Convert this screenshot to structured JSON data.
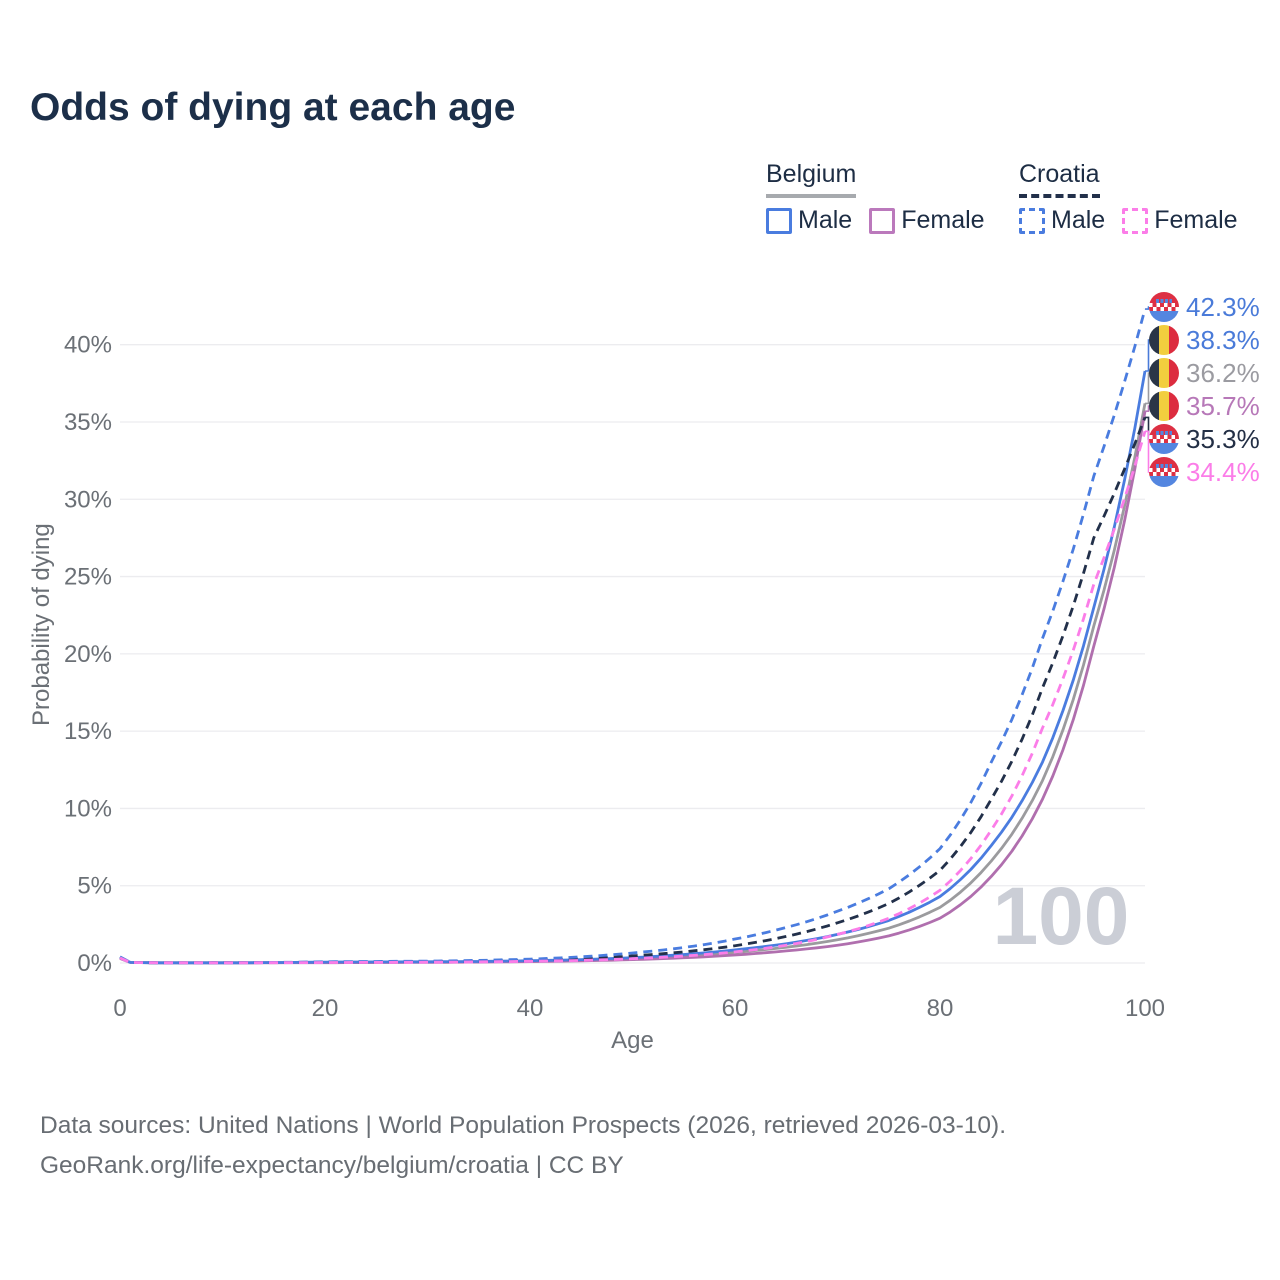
{
  "title": "Odds of dying at each age",
  "legend": {
    "groups": [
      {
        "country": "Belgium",
        "style": "solid",
        "items": [
          {
            "label": "Male"
          },
          {
            "label": "Female"
          }
        ]
      },
      {
        "country": "Croatia",
        "style": "dashed",
        "items": [
          {
            "label": "Male"
          },
          {
            "label": "Female"
          }
        ]
      }
    ]
  },
  "watermark": "100",
  "footer": {
    "line1": "Data sources: United Nations | World Population Prospects (2026, retrieved 2026-03-10).",
    "line2": "GeoRank.org/life-expectancy/belgium/croatia | CC BY"
  },
  "chart_data": {
    "type": "line",
    "title": "Odds of dying at each age",
    "xlabel": "Age",
    "ylabel": "Probability of dying",
    "xlim": [
      0,
      100
    ],
    "ylim": [
      0,
      42.9
    ],
    "grid": "horizontal",
    "legend_position": "top-right",
    "x_ticks": [
      {
        "value": 0,
        "label": "0"
      },
      {
        "value": 20,
        "label": "20"
      },
      {
        "value": 40,
        "label": "40"
      },
      {
        "value": 60,
        "label": "60"
      },
      {
        "value": 80,
        "label": "80"
      },
      {
        "value": 100,
        "label": "100"
      }
    ],
    "y_ticks": [
      {
        "value": 0,
        "label": "0%"
      },
      {
        "value": 5,
        "label": "5%"
      },
      {
        "value": 10,
        "label": "10%"
      },
      {
        "value": 15,
        "label": "15%"
      },
      {
        "value": 20,
        "label": "20%"
      },
      {
        "value": 25,
        "label": "25%"
      },
      {
        "value": 30,
        "label": "30%"
      },
      {
        "value": 35,
        "label": "35%"
      },
      {
        "value": 40,
        "label": "40%"
      }
    ],
    "ages": [
      0,
      1,
      5,
      10,
      15,
      20,
      25,
      30,
      35,
      40,
      45,
      50,
      55,
      60,
      65,
      70,
      75,
      80,
      85,
      90,
      95,
      100
    ],
    "series": [
      {
        "name": "Belgium Both sexes",
        "country": "belgium",
        "color": "#9b9b9e",
        "dash": false,
        "values": [
          0.33,
          0.04,
          0.01,
          0.01,
          0.02,
          0.04,
          0.05,
          0.06,
          0.08,
          0.12,
          0.18,
          0.29,
          0.45,
          0.69,
          1.02,
          1.5,
          2.25,
          3.6,
          6.6,
          11.8,
          21.8,
          36.2
        ]
      },
      {
        "name": "Belgium Female",
        "country": "belgium",
        "color": "#b06fae",
        "dash": false,
        "values": [
          0.3,
          0.03,
          0.01,
          0.01,
          0.02,
          0.02,
          0.03,
          0.04,
          0.06,
          0.09,
          0.14,
          0.22,
          0.34,
          0.52,
          0.78,
          1.15,
          1.75,
          2.9,
          5.6,
          10.6,
          20.5,
          35.7
        ]
      },
      {
        "name": "Belgium Male",
        "country": "belgium",
        "color": "#4a7cdf",
        "dash": false,
        "values": [
          0.35,
          0.04,
          0.01,
          0.01,
          0.03,
          0.06,
          0.07,
          0.08,
          0.1,
          0.15,
          0.22,
          0.35,
          0.55,
          0.85,
          1.25,
          1.85,
          2.75,
          4.3,
          7.6,
          13.0,
          23.0,
          38.3
        ]
      },
      {
        "name": "Croatia Both sexes",
        "country": "croatia",
        "color": "#22304a",
        "dash": true,
        "values": [
          0.37,
          0.04,
          0.01,
          0.02,
          0.03,
          0.06,
          0.07,
          0.09,
          0.12,
          0.18,
          0.28,
          0.46,
          0.72,
          1.12,
          1.72,
          2.6,
          3.85,
          6.0,
          10.6,
          17.8,
          27.5,
          35.3
        ]
      },
      {
        "name": "Croatia Male",
        "country": "croatia",
        "color": "#4a7cdf",
        "dash": true,
        "values": [
          0.4,
          0.04,
          0.01,
          0.02,
          0.04,
          0.08,
          0.1,
          0.12,
          0.17,
          0.25,
          0.4,
          0.65,
          1.0,
          1.55,
          2.3,
          3.35,
          4.8,
          7.4,
          13.0,
          21.0,
          31.5,
          42.3
        ]
      },
      {
        "name": "Croatia Female",
        "country": "croatia",
        "color": "#fb7de8",
        "dash": true,
        "values": [
          0.33,
          0.03,
          0.01,
          0.01,
          0.02,
          0.03,
          0.04,
          0.05,
          0.07,
          0.11,
          0.17,
          0.28,
          0.45,
          0.72,
          1.15,
          1.85,
          2.9,
          4.7,
          8.6,
          15.2,
          24.5,
          34.4
        ]
      }
    ],
    "end_labels": [
      {
        "label": "42.3%",
        "value": 42.3,
        "series": "Croatia Male",
        "country": "croatia",
        "color": "#4a7bd9"
      },
      {
        "label": "38.3%",
        "value": 38.3,
        "series": "Belgium Male",
        "country": "belgium",
        "color": "#4a7bd9"
      },
      {
        "label": "36.2%",
        "value": 36.2,
        "series": "Belgium Both sexes",
        "country": "belgium",
        "color": "#9b9ba1"
      },
      {
        "label": "35.7%",
        "value": 35.7,
        "series": "Belgium Female",
        "country": "belgium",
        "color": "#b778b8"
      },
      {
        "label": "35.3%",
        "value": 35.3,
        "series": "Croatia Both sexes",
        "country": "croatia",
        "color": "#232f45"
      },
      {
        "label": "34.4%",
        "value": 34.4,
        "series": "Croatia Female",
        "country": "croatia",
        "color": "#fb7de8"
      }
    ]
  }
}
